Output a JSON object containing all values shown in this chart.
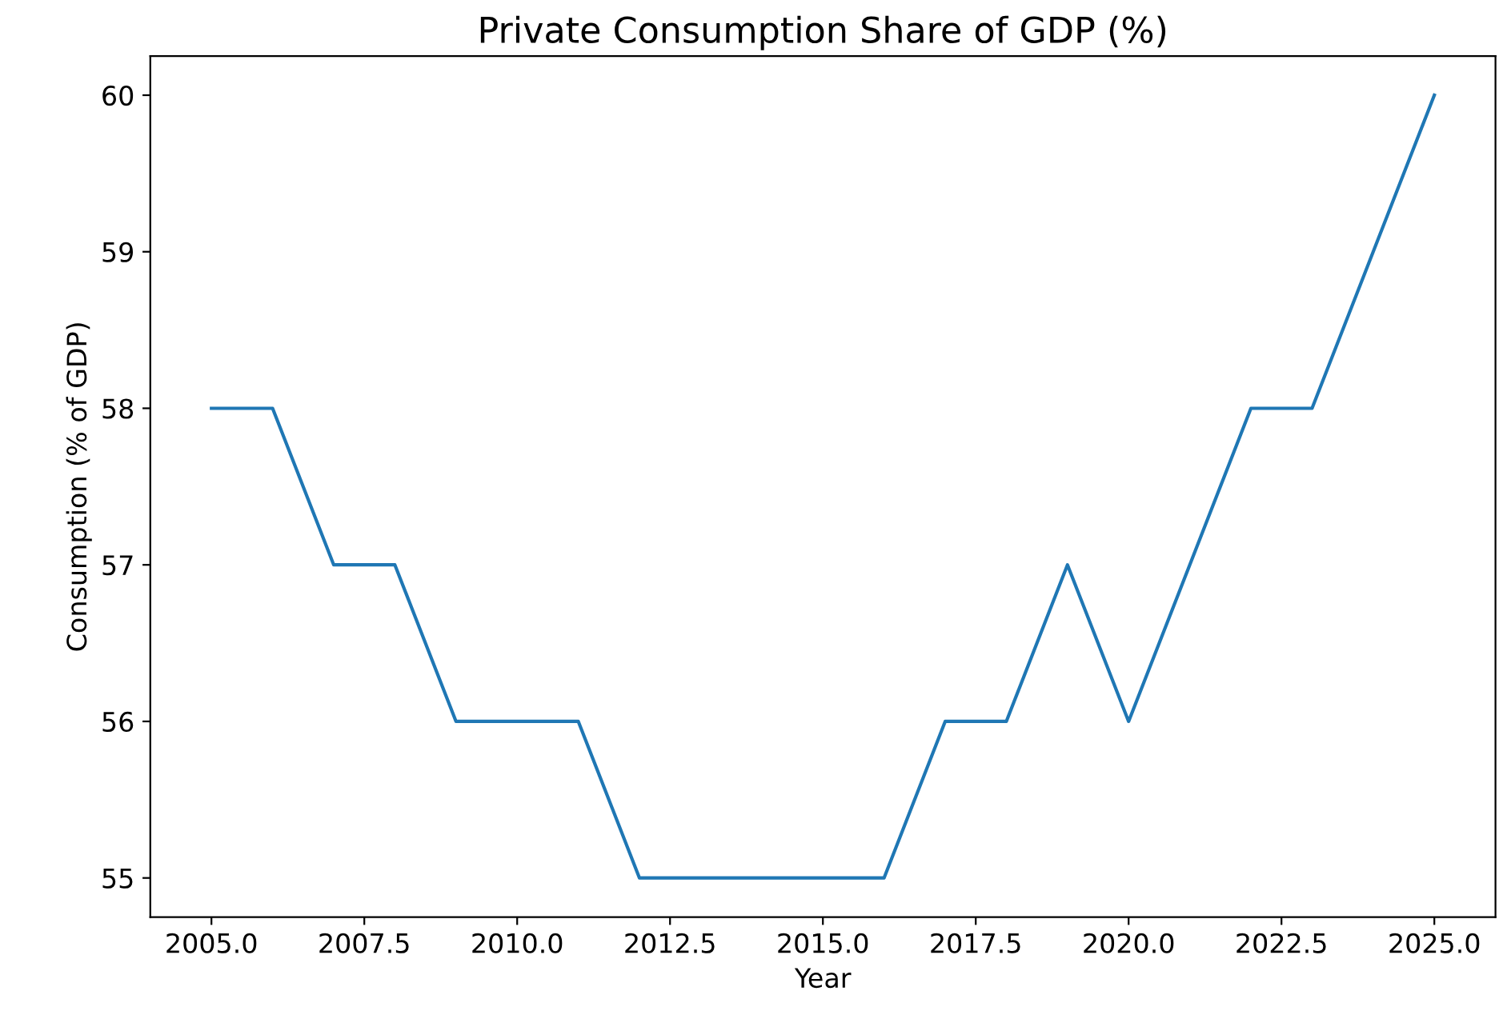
{
  "chart_data": {
    "type": "line",
    "title": "Private Consumption Share of GDP (%)",
    "xlabel": "Year",
    "ylabel": "Consumption (% of GDP)",
    "x": [
      2005,
      2006,
      2007,
      2008,
      2009,
      2010,
      2011,
      2012,
      2013,
      2014,
      2015,
      2016,
      2017,
      2018,
      2019,
      2020,
      2021,
      2022,
      2023,
      2024,
      2025
    ],
    "series": [
      {
        "color": "#1f77b4",
        "values": [
          58,
          58,
          57,
          57,
          56,
          56,
          56,
          55,
          55,
          55,
          55,
          55,
          56,
          56,
          57,
          56,
          57,
          58,
          58,
          59,
          60
        ]
      }
    ],
    "xlim": [
      2004,
      2026
    ],
    "ylim": [
      54.75,
      60.25
    ],
    "xticks": [
      {
        "value": 2005,
        "label": "2005.0"
      },
      {
        "value": 2007.5,
        "label": "2007.5"
      },
      {
        "value": 2010,
        "label": "2010.0"
      },
      {
        "value": 2012.5,
        "label": "2012.5"
      },
      {
        "value": 2015,
        "label": "2015.0"
      },
      {
        "value": 2017.5,
        "label": "2017.5"
      },
      {
        "value": 2020,
        "label": "2020.0"
      },
      {
        "value": 2022.5,
        "label": "2022.5"
      },
      {
        "value": 2025,
        "label": "2025.0"
      }
    ],
    "yticks": [
      55,
      56,
      57,
      58,
      59,
      60
    ],
    "grid": false,
    "legend": false,
    "marker": "none",
    "line_style": "solid"
  }
}
